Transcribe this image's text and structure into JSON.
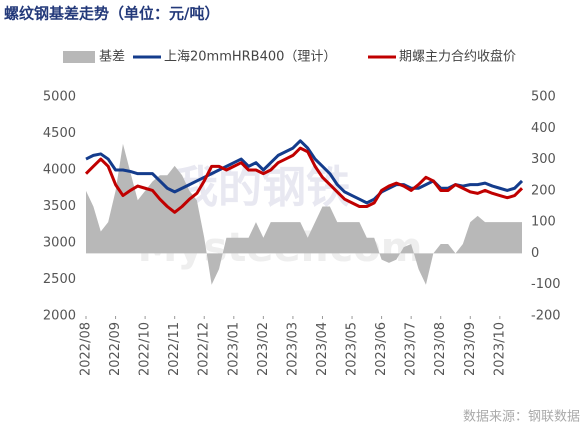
{
  "chart_data": {
    "type": "line",
    "title": "螺纹钢基差走势（单位：元/吨）",
    "source": "数据来源：钢联数据",
    "watermark": [
      "我的钢铁",
      "Mysteel.com"
    ],
    "categories": [
      "2022/08",
      null,
      null,
      null,
      "2022/09",
      null,
      null,
      null,
      "2022/10",
      null,
      null,
      null,
      "2022/11",
      null,
      null,
      null,
      "2022/12",
      null,
      null,
      null,
      "2023/01",
      null,
      null,
      null,
      "2023/02",
      null,
      null,
      null,
      "2023/03",
      null,
      null,
      null,
      "2023/04",
      null,
      null,
      null,
      "2023/05",
      null,
      null,
      null,
      "2023/06",
      null,
      null,
      null,
      "2023/07",
      null,
      null,
      null,
      "2023/08",
      null,
      null,
      null,
      "2023/09",
      null,
      null,
      null,
      "2023/10",
      null,
      null,
      null
    ],
    "series": [
      {
        "name": "基差",
        "color": "#b8b8b8",
        "axis": "y2",
        "kind": "area",
        "values": [
          200,
          150,
          70,
          100,
          200,
          350,
          260,
          170,
          200,
          230,
          250,
          250,
          280,
          250,
          200,
          170,
          50,
          -100,
          -50,
          50,
          50,
          50,
          50,
          100,
          50,
          100,
          100,
          100,
          100,
          100,
          50,
          100,
          150,
          150,
          100,
          100,
          100,
          100,
          50,
          50,
          -20,
          -30,
          -20,
          20,
          30,
          -50,
          -100,
          0,
          30,
          30,
          0,
          30,
          100,
          120,
          100,
          100,
          100,
          100,
          100,
          100
        ]
      },
      {
        "name": "上海20mmHRB400（理计）",
        "color": "#143c8c",
        "values": [
          4150,
          4200,
          4220,
          4150,
          4000,
          4000,
          3980,
          3950,
          3950,
          3950,
          3850,
          3750,
          3700,
          3750,
          3800,
          3850,
          3900,
          3950,
          4000,
          4050,
          4100,
          4150,
          4050,
          4100,
          4000,
          4100,
          4200,
          4250,
          4300,
          4400,
          4300,
          4150,
          4050,
          3950,
          3800,
          3700,
          3650,
          3600,
          3550,
          3600,
          3700,
          3750,
          3800,
          3800,
          3750,
          3750,
          3800,
          3850,
          3750,
          3750,
          3800,
          3780,
          3800,
          3800,
          3820,
          3780,
          3750,
          3720,
          3750,
          3850
        ]
      },
      {
        "name": "期螺主力合约收盘价",
        "color": "#c00000",
        "values": [
          3950,
          4050,
          4150,
          4050,
          3800,
          3650,
          3720,
          3780,
          3750,
          3720,
          3600,
          3500,
          3420,
          3500,
          3600,
          3680,
          3850,
          4050,
          4050,
          4000,
          4050,
          4100,
          4000,
          4000,
          3950,
          4000,
          4100,
          4150,
          4200,
          4300,
          4250,
          4050,
          3900,
          3800,
          3700,
          3600,
          3550,
          3500,
          3500,
          3550,
          3720,
          3780,
          3820,
          3780,
          3720,
          3800,
          3900,
          3850,
          3720,
          3720,
          3800,
          3750,
          3700,
          3680,
          3720,
          3680,
          3650,
          3620,
          3650,
          3750
        ]
      }
    ],
    "ylim": [
      2000,
      5000
    ],
    "yticks": [
      2000,
      2500,
      3000,
      3500,
      4000,
      4500,
      5000
    ],
    "y2lim": [
      -200,
      500
    ],
    "y2ticks": [
      -200,
      -100,
      0,
      100,
      200,
      300,
      400,
      500
    ]
  }
}
